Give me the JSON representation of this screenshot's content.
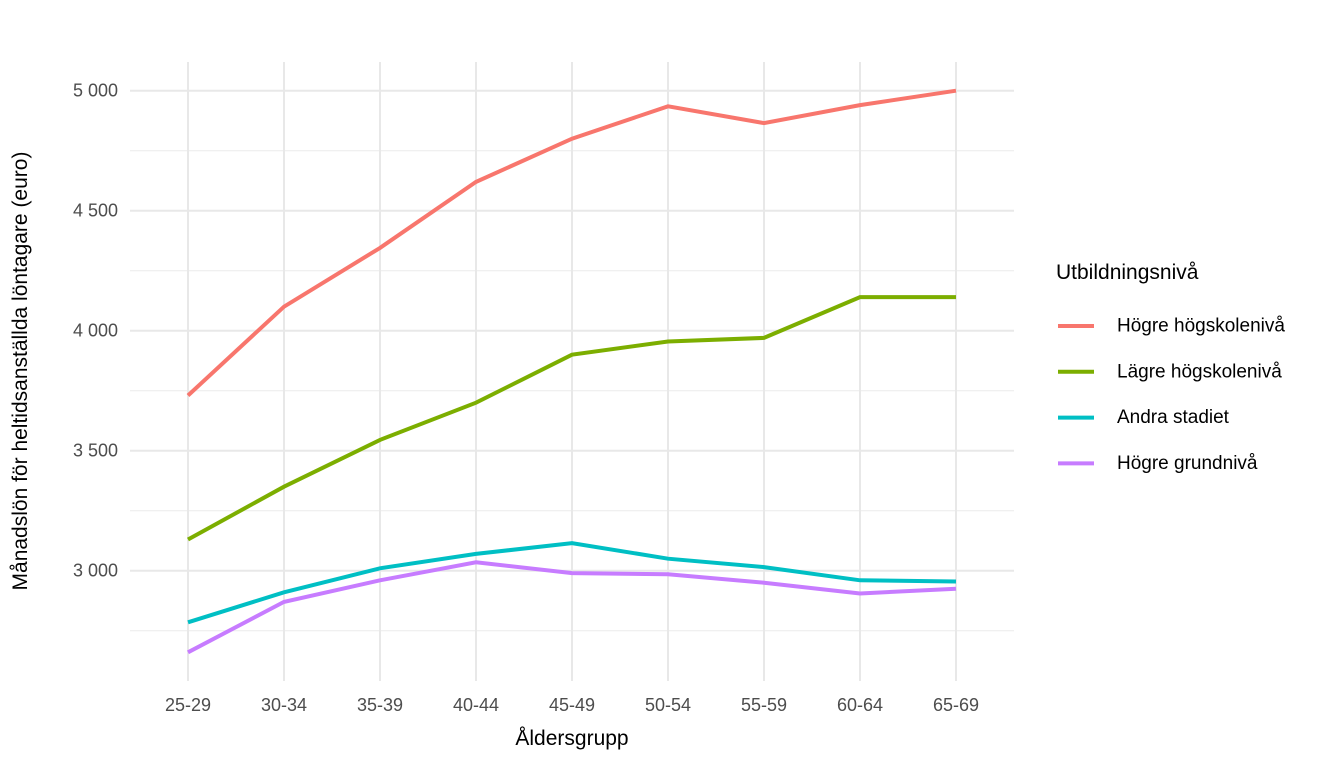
{
  "chart_data": {
    "type": "line",
    "title": "",
    "xlabel": "Åldersgrupp",
    "ylabel": "Månadslön för heltidsanställda löntagare (euro)",
    "legend_title": "Utbildningsnivå",
    "legend_position": "right",
    "categories": [
      "25-29",
      "30-34",
      "35-39",
      "40-44",
      "45-49",
      "50-54",
      "55-59",
      "60-64",
      "65-69"
    ],
    "series": [
      {
        "name": "Högre högskolenivå",
        "color": "#F8766D",
        "values": [
          3730,
          4100,
          4345,
          4620,
          4800,
          4935,
          4865,
          4940,
          5000
        ]
      },
      {
        "name": "Lägre högskolenivå",
        "color": "#7CAE00",
        "values": [
          3130,
          3350,
          3545,
          3700,
          3900,
          3955,
          3970,
          4140,
          4140
        ]
      },
      {
        "name": "Andra stadiet",
        "color": "#00BFC4",
        "values": [
          2785,
          2910,
          3010,
          3070,
          3115,
          3050,
          3015,
          2960,
          2955
        ]
      },
      {
        "name": "Högre grundnivå",
        "color": "#C77CFF",
        "values": [
          2660,
          2870,
          2960,
          3035,
          2990,
          2985,
          2950,
          2905,
          2925
        ]
      }
    ],
    "ylim": [
      2540,
      5120
    ],
    "y_ticks": {
      "values": [
        3000,
        3500,
        4000,
        4500,
        5000
      ],
      "labels": [
        "3 000",
        "3 500",
        "4 000",
        "4 500",
        "5 000"
      ]
    },
    "y_minor_gridlines": [
      2750,
      3250,
      3750,
      4250,
      4750
    ],
    "grid": "horizontal major+minor and vertical major, light grey on white background"
  },
  "colors": {
    "background": "#FFFFFF",
    "grid_major": "#E8E8E8",
    "grid_minor": "#F0F0F0",
    "tick_text": "#4D4D4D",
    "title_text": "#000000"
  }
}
